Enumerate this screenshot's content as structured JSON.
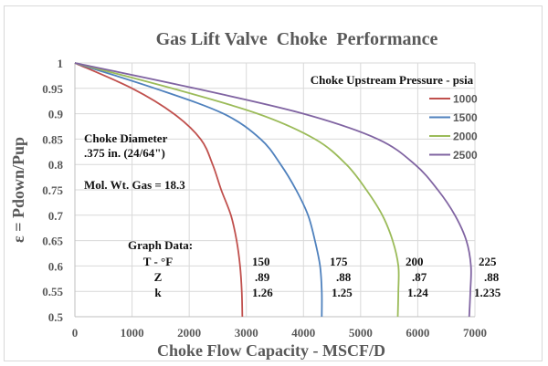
{
  "chart_data": {
    "type": "line",
    "title": "Gas Lift Valve  Choke  Performance",
    "xlabel": "Choke Flow Capacity - MSCF/D",
    "ylabel": "ε = Pdown/Pup",
    "xlim": [
      0,
      7000
    ],
    "ylim": [
      0.5,
      1
    ],
    "grid": true,
    "x_ticks": [
      "0",
      "1000",
      "2000",
      "3000",
      "4000",
      "5000",
      "6000",
      "7000"
    ],
    "x_tick_values": [
      0,
      1000,
      2000,
      3000,
      4000,
      5000,
      6000,
      7000
    ],
    "y_ticks": [
      "1",
      "0.95",
      "0.9",
      "0.85",
      "0.8",
      "0.75",
      "0.7",
      "0.65",
      "0.6",
      "0.55",
      "0.5"
    ],
    "y_tick_values": [
      1,
      0.95,
      0.9,
      0.85,
      0.8,
      0.75,
      0.7,
      0.65,
      0.6,
      0.55,
      0.5
    ],
    "legend_title": "Choke Upstream Pressure - psia",
    "legend_position": "top-right",
    "series": [
      {
        "name": "1000",
        "color": "#c0504d",
        "x": [
          0,
          1000,
          1730,
          2200,
          2410,
          2560,
          2730,
          2830,
          2890,
          2920,
          2930
        ],
        "y": [
          1,
          0.95,
          0.9,
          0.85,
          0.8,
          0.75,
          0.7,
          0.65,
          0.6,
          0.55,
          0.5
        ]
      },
      {
        "name": "1500",
        "color": "#4f81bd",
        "x": [
          0,
          1400,
          2600,
          3250,
          3600,
          3870,
          4080,
          4200,
          4290,
          4320,
          4320
        ],
        "y": [
          1,
          0.95,
          0.9,
          0.85,
          0.8,
          0.75,
          0.7,
          0.65,
          0.6,
          0.55,
          0.5
        ]
      },
      {
        "name": "2000",
        "color": "#9bbb59",
        "x": [
          0,
          1700,
          3200,
          4200,
          4750,
          5100,
          5380,
          5560,
          5660,
          5660,
          5650
        ],
        "y": [
          1,
          0.95,
          0.9,
          0.85,
          0.8,
          0.75,
          0.7,
          0.65,
          0.6,
          0.55,
          0.5
        ]
      },
      {
        "name": "2500",
        "color": "#8064a2",
        "x": [
          0,
          2100,
          4000,
          5300,
          5950,
          6350,
          6650,
          6850,
          6930,
          6920,
          6900
        ],
        "y": [
          1,
          0.95,
          0.9,
          0.85,
          0.8,
          0.75,
          0.7,
          0.65,
          0.6,
          0.55,
          0.5
        ]
      }
    ],
    "annotations": {
      "choke_diameter_label": "Choke Diameter",
      "choke_diameter_value": ".375 in. (24/64\")",
      "mol_wt": "Mol. Wt. Gas = 18.3",
      "graph_data_title": "Graph Data:",
      "row_labels": [
        "T - °F",
        "Z",
        "k"
      ],
      "columns": [
        {
          "T": "150",
          "Z": ".89",
          "k": "1.26"
        },
        {
          "T": "175",
          "Z": ".88",
          "k": "1.25"
        },
        {
          "T": "200",
          "Z": ".87",
          "k": "1.24"
        },
        {
          "T": "225",
          "Z": ".88",
          "k": "1.235"
        }
      ]
    }
  }
}
